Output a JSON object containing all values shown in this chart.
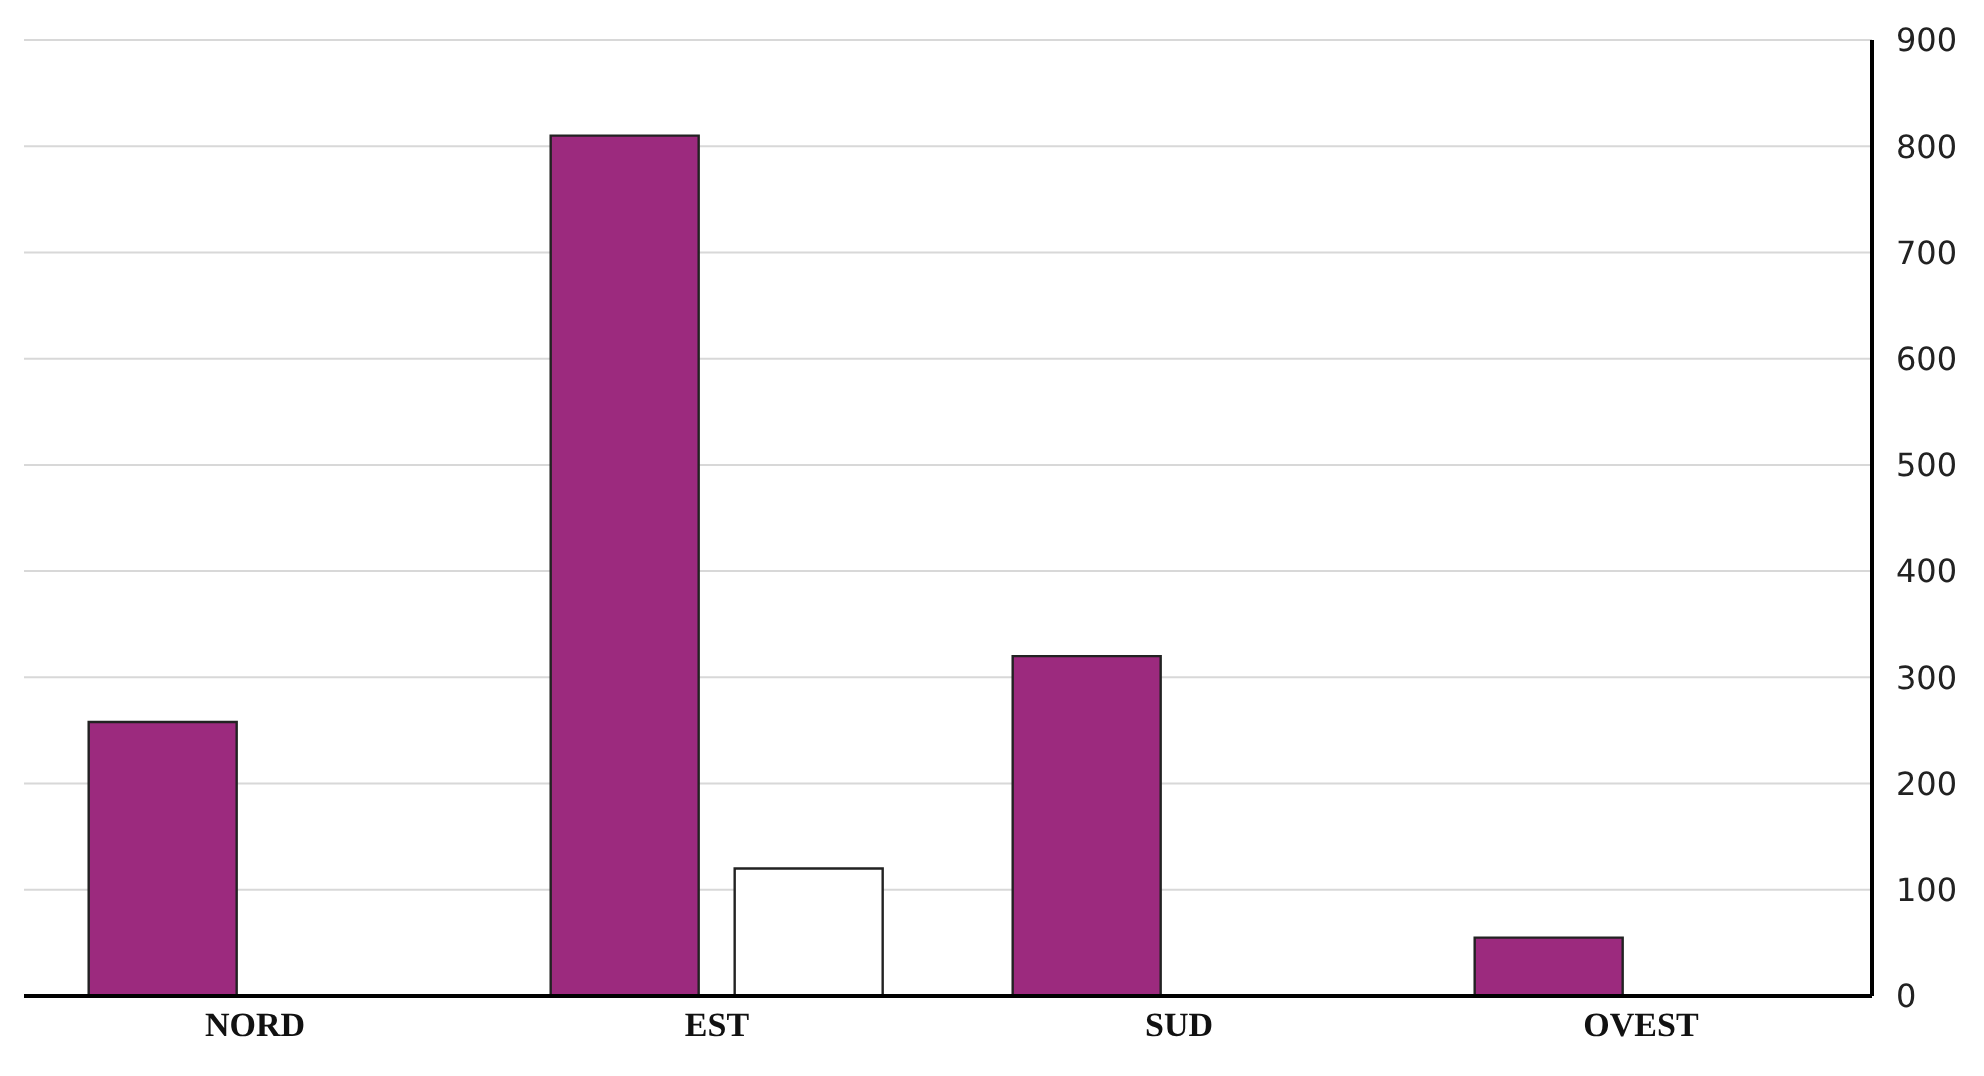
{
  "chart_data": {
    "type": "bar",
    "categories": [
      "NORD",
      "EST",
      "SUD",
      "OVEST"
    ],
    "series": [
      {
        "color": "#9c2a7e",
        "values": [
          258,
          810,
          320,
          55
        ]
      },
      {
        "color": "#ffffff",
        "values": [
          null,
          120,
          null,
          null
        ]
      }
    ],
    "ylim": [
      0,
      900
    ],
    "yticks": [
      0,
      100,
      200,
      300,
      400,
      500,
      600,
      700,
      800,
      900
    ],
    "grid": "y",
    "legend": false
  }
}
